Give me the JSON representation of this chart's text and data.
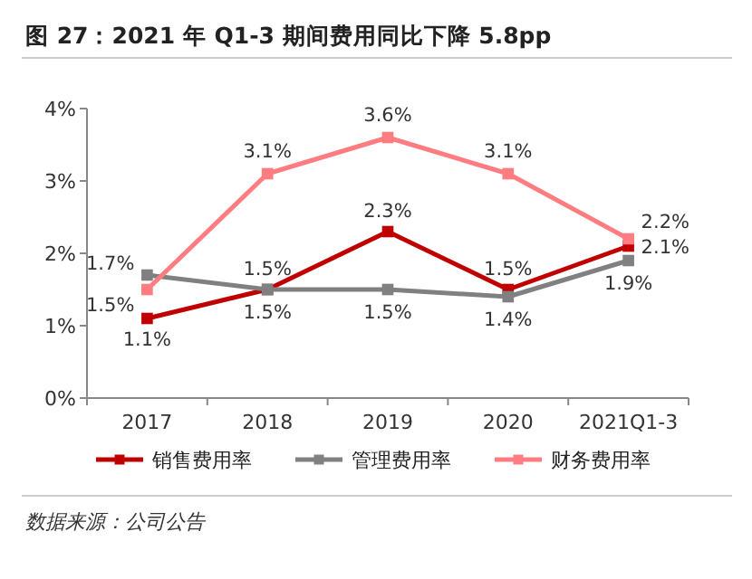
{
  "chart_data": {
    "type": "line",
    "title": "图 27：2021 年 Q1-3 期间费用同比下降 5.8pp",
    "categories": [
      "2017",
      "2018",
      "2019",
      "2020",
      "2021Q1-3"
    ],
    "series": [
      {
        "name": "销售费用率",
        "color": "#c00000",
        "values": [
          1.1,
          1.5,
          2.3,
          1.5,
          2.1
        ],
        "value_labels": [
          "1.1%",
          "1.5%",
          "2.3%",
          "1.5%",
          "2.1%"
        ]
      },
      {
        "name": "管理费用率",
        "color": "#808080",
        "values": [
          1.7,
          1.5,
          1.5,
          1.4,
          1.9
        ],
        "value_labels": [
          "1.7%",
          "1.5%",
          "1.5%",
          "1.4%",
          "1.9%"
        ]
      },
      {
        "name": "财务费用率",
        "color": "#ff7c80",
        "values": [
          1.5,
          3.1,
          3.6,
          3.1,
          2.2
        ],
        "value_labels": [
          "1.5%",
          "3.1%",
          "3.6%",
          "3.1%",
          "2.2%"
        ]
      }
    ],
    "ylim": [
      0,
      4
    ],
    "yticks": [
      {
        "value": 0,
        "label": "0%"
      },
      {
        "value": 1,
        "label": "1%"
      },
      {
        "value": 2,
        "label": "2%"
      },
      {
        "value": 3,
        "label": "3%"
      },
      {
        "value": 4,
        "label": "4%"
      }
    ],
    "grid": false,
    "legend": "bottom",
    "marker": "square",
    "line_style": "solid",
    "annotations": [
      "数据来源：公司公告"
    ]
  }
}
